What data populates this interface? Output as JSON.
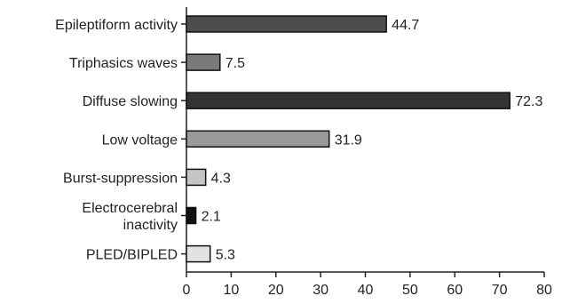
{
  "chart_data": {
    "type": "bar",
    "orientation": "horizontal",
    "categories": [
      "Epileptiform activity",
      "Triphasics waves",
      "Diffuse slowing",
      "Low voltage",
      "Burst-suppression",
      "Electrocerebral inactivity",
      "PLED/BIPLED"
    ],
    "category_lines": [
      [
        "Epileptiform activity"
      ],
      [
        "Triphasics waves"
      ],
      [
        "Diffuse slowing"
      ],
      [
        "Low voltage"
      ],
      [
        "Burst-suppression"
      ],
      [
        "Electrocerebral",
        "inactivity"
      ],
      [
        "PLED/BIPLED"
      ]
    ],
    "values": [
      44.7,
      7.5,
      72.3,
      31.9,
      4.3,
      2.1,
      5.3
    ],
    "value_labels": [
      "44.7",
      "7.5",
      "72.3",
      "31.9",
      "4.3",
      "2.1",
      "5.3"
    ],
    "bar_colors": [
      "#4d4d4d",
      "#7a7a7a",
      "#333333",
      "#9a9a9a",
      "#c4c4c4",
      "#111111",
      "#e2e2e2"
    ],
    "xlim": [
      0,
      80
    ],
    "xticks": [
      0,
      10,
      20,
      30,
      40,
      50,
      60,
      70,
      80
    ],
    "title": "",
    "xlabel": "",
    "ylabel": "",
    "grid": false
  }
}
